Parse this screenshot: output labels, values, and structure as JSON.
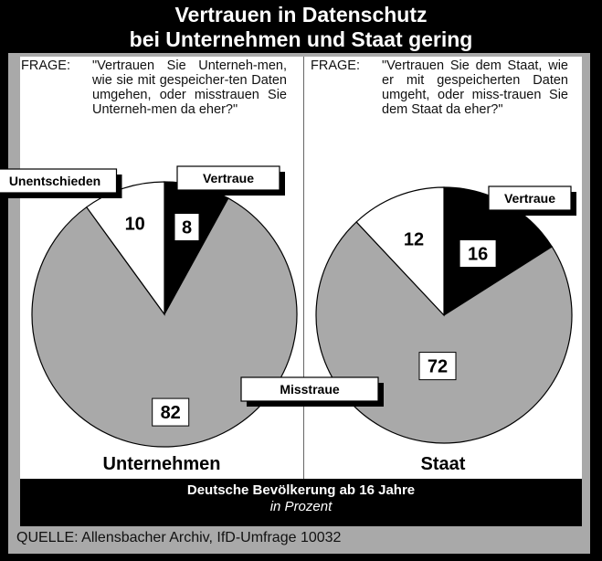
{
  "title": {
    "line1": "Vertrauen in Datenschutz",
    "line2": "bei Unternehmen und Staat gering"
  },
  "questions": {
    "left": {
      "label": "FRAGE:",
      "text": "\"Vertrauen Sie Unterneh-men, wie sie mit gespeicher-ten Daten umgehen, oder misstrauen Sie Unterneh-men da eher?\""
    },
    "right": {
      "label": "FRAGE:",
      "text": "\"Vertrauen Sie dem Staat, wie er mit gespeicherten Daten umgeht, oder miss-trauen Sie dem Staat da eher?\""
    }
  },
  "footer": {
    "line1": "Deutsche Bevölkerung ab 16 Jahre",
    "line2": "in Prozent"
  },
  "source": "QUELLE: Allensbacher Archiv, IfD-Umfrage 10032",
  "colors": {
    "vertraue": "#000000",
    "misstraue": "#a9a9a9",
    "unentschieden": "#ffffff"
  },
  "chart_data": [
    {
      "type": "pie",
      "title": "Unternehmen",
      "slices": [
        {
          "name": "Vertraue",
          "value": 8
        },
        {
          "name": "Misstraue",
          "value": 82
        },
        {
          "name": "Unentschieden",
          "value": 10
        }
      ]
    },
    {
      "type": "pie",
      "title": "Staat",
      "slices": [
        {
          "name": "Vertraue",
          "value": 16
        },
        {
          "name": "Misstraue",
          "value": 72
        },
        {
          "name": "Unentschieden",
          "value": 12
        }
      ]
    }
  ]
}
